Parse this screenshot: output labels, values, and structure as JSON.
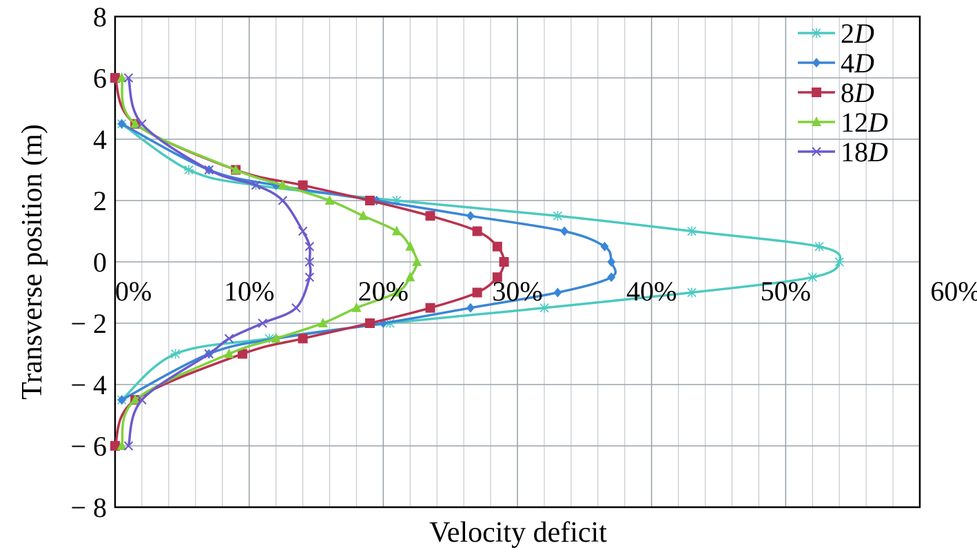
{
  "chart_data": {
    "type": "line",
    "title": "",
    "xlabel": "Velocity deficit",
    "ylabel": "Transverse position (m)",
    "xlim": [
      0,
      60
    ],
    "ylim": [
      -8,
      8
    ],
    "x_ticks": [
      "0%",
      "10%",
      "20%",
      "30%",
      "40%",
      "50%",
      "60%"
    ],
    "y_ticks": [
      "8",
      "6",
      "4",
      "2",
      "0",
      "− 2",
      "− 4",
      "− 6",
      "− 8"
    ],
    "grid": true,
    "legend_position": "top-right",
    "series": [
      {
        "name": "2D",
        "label_num": "2",
        "label_var": "D",
        "color": "#4cc9c0",
        "marker": "asterisk",
        "points": [
          [
            0.5,
            4.5
          ],
          [
            5.5,
            3.0
          ],
          [
            10.5,
            2.5
          ],
          [
            21.0,
            2.0
          ],
          [
            33.0,
            1.5
          ],
          [
            43.0,
            1.0
          ],
          [
            52.5,
            0.5
          ],
          [
            54.0,
            0.0
          ],
          [
            52.0,
            -0.5
          ],
          [
            43.0,
            -1.0
          ],
          [
            32.0,
            -1.5
          ],
          [
            20.5,
            -2.0
          ],
          [
            11.5,
            -2.5
          ],
          [
            4.5,
            -3.0
          ],
          [
            0.5,
            -4.5
          ]
        ]
      },
      {
        "name": "4D",
        "label_num": "4",
        "label_var": "D",
        "color": "#3a86d6",
        "marker": "diamond",
        "points": [
          [
            0.5,
            4.5
          ],
          [
            7.0,
            3.0
          ],
          [
            12.0,
            2.5
          ],
          [
            19.5,
            2.0
          ],
          [
            26.5,
            1.5
          ],
          [
            33.5,
            1.0
          ],
          [
            36.5,
            0.5
          ],
          [
            37.0,
            0.0
          ],
          [
            37.0,
            -0.5
          ],
          [
            33.0,
            -1.0
          ],
          [
            26.5,
            -1.5
          ],
          [
            20.0,
            -2.0
          ],
          [
            12.0,
            -2.5
          ],
          [
            7.0,
            -3.0
          ],
          [
            0.5,
            -4.5
          ]
        ]
      },
      {
        "name": "8D",
        "label_num": "8",
        "label_var": "D",
        "color": "#b8324f",
        "marker": "square",
        "points": [
          [
            0.0,
            6.0
          ],
          [
            1.5,
            4.5
          ],
          [
            9.0,
            3.0
          ],
          [
            14.0,
            2.5
          ],
          [
            19.0,
            2.0
          ],
          [
            23.5,
            1.5
          ],
          [
            27.0,
            1.0
          ],
          [
            28.5,
            0.5
          ],
          [
            29.0,
            0.0
          ],
          [
            28.5,
            -0.5
          ],
          [
            27.0,
            -1.0
          ],
          [
            23.5,
            -1.5
          ],
          [
            19.0,
            -2.0
          ],
          [
            14.0,
            -2.5
          ],
          [
            9.5,
            -3.0
          ],
          [
            1.5,
            -4.5
          ],
          [
            0.0,
            -6.0
          ]
        ]
      },
      {
        "name": "12D",
        "label_num": "12",
        "label_var": "D",
        "color": "#7fd13b",
        "marker": "triangle",
        "points": [
          [
            0.5,
            6.0
          ],
          [
            1.5,
            4.5
          ],
          [
            9.0,
            3.0
          ],
          [
            12.5,
            2.5
          ],
          [
            16.0,
            2.0
          ],
          [
            18.5,
            1.5
          ],
          [
            21.0,
            1.0
          ],
          [
            22.0,
            0.5
          ],
          [
            22.5,
            0.0
          ],
          [
            22.0,
            -0.5
          ],
          [
            21.0,
            -1.0
          ],
          [
            18.0,
            -1.5
          ],
          [
            15.5,
            -2.0
          ],
          [
            12.0,
            -2.5
          ],
          [
            8.5,
            -3.0
          ],
          [
            1.5,
            -4.5
          ],
          [
            0.5,
            -6.0
          ]
        ]
      },
      {
        "name": "18D",
        "label_num": "18",
        "label_var": "D",
        "color": "#6a5acd",
        "marker": "x",
        "points": [
          [
            1.0,
            6.0
          ],
          [
            2.0,
            4.5
          ],
          [
            7.0,
            3.0
          ],
          [
            10.5,
            2.5
          ],
          [
            12.5,
            2.0
          ],
          [
            14.0,
            1.0
          ],
          [
            14.5,
            0.5
          ],
          [
            14.5,
            0.0
          ],
          [
            14.5,
            -0.5
          ],
          [
            13.5,
            -1.5
          ],
          [
            11.0,
            -2.0
          ],
          [
            8.5,
            -2.5
          ],
          [
            7.0,
            -3.0
          ],
          [
            2.0,
            -4.5
          ],
          [
            1.0,
            -6.0
          ]
        ]
      }
    ]
  }
}
